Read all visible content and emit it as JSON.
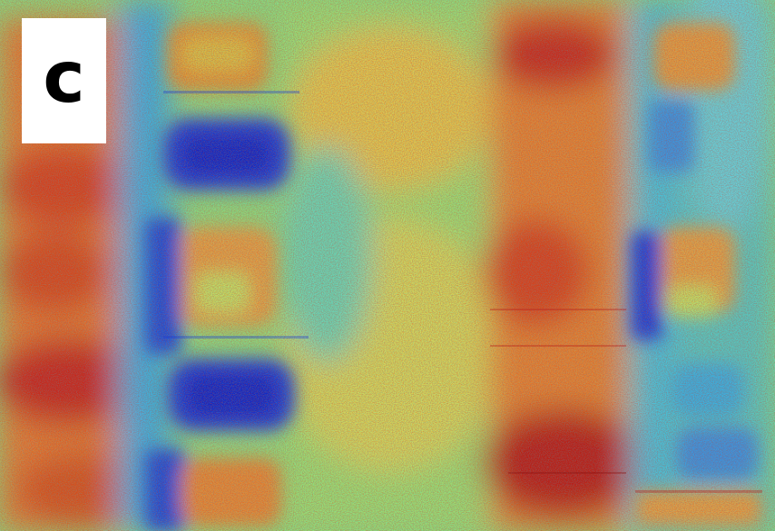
{
  "panel_label": "c",
  "colormap": {
    "low": "#0a2dd0",
    "mid_low": "#1e9be8",
    "mid": "#2ed8c8",
    "mid_high": "#e8e03a",
    "high": "#e8561e",
    "max": "#b8141a"
  }
}
